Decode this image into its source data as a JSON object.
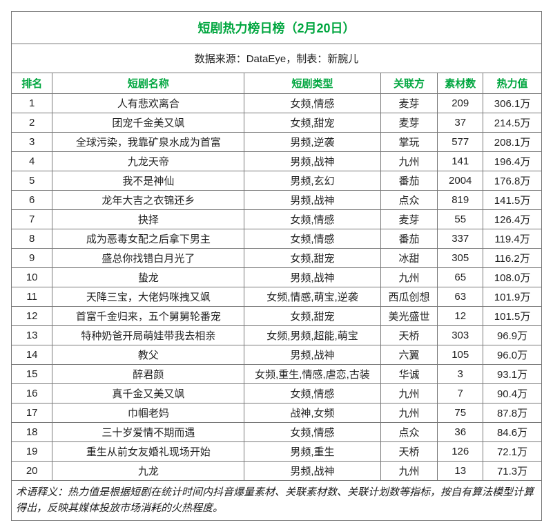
{
  "title": "短剧热力榜日榜（2月20日）",
  "source": "数据来源：DataEye，制表：新腕儿",
  "columns": [
    "排名",
    "短剧名称",
    "短剧类型",
    "关联方",
    "素材数",
    "热力值"
  ],
  "rows": [
    [
      "1",
      "人有悲欢离合",
      "女频,情感",
      "麦芽",
      "209",
      "306.1万"
    ],
    [
      "2",
      "团宠千金美又飒",
      "女频,甜宠",
      "麦芽",
      "37",
      "214.5万"
    ],
    [
      "3",
      "全球污染，我靠矿泉水成为首富",
      "男频,逆袭",
      "掌玩",
      "577",
      "208.1万"
    ],
    [
      "4",
      "九龙天帝",
      "男频,战神",
      "九州",
      "141",
      "196.4万"
    ],
    [
      "5",
      "我不是神仙",
      "男频,玄幻",
      "番茄",
      "2004",
      "176.8万"
    ],
    [
      "6",
      "龙年大吉之衣锦还乡",
      "男频,战神",
      "点众",
      "819",
      "141.5万"
    ],
    [
      "7",
      "抉择",
      "女频,情感",
      "麦芽",
      "55",
      "126.4万"
    ],
    [
      "8",
      "成为恶毒女配之后拿下男主",
      "女频,情感",
      "番茄",
      "337",
      "119.4万"
    ],
    [
      "9",
      "盛总你找错白月光了",
      "女频,甜宠",
      "冰甜",
      "305",
      "116.2万"
    ],
    [
      "10",
      "蛰龙",
      "男频,战神",
      "九州",
      "65",
      "108.0万"
    ],
    [
      "11",
      "天降三宝，大佬妈咪拽又飒",
      "女频,情感,萌宝,逆袭",
      "西瓜创想",
      "63",
      "101.9万"
    ],
    [
      "12",
      "首富千金归来，五个舅舅轮番宠",
      "女频,甜宠",
      "美光盛世",
      "12",
      "101.5万"
    ],
    [
      "13",
      "特种奶爸开局萌娃带我去相亲",
      "女频,男频,超能,萌宝",
      "天桥",
      "303",
      "96.9万"
    ],
    [
      "14",
      "教父",
      "男频,战神",
      "六翼",
      "105",
      "96.0万"
    ],
    [
      "15",
      "醉君颜",
      "女频,重生,情感,虐恋,古装",
      "华诚",
      "3",
      "93.1万"
    ],
    [
      "16",
      "真千金又美又飒",
      "女频,情感",
      "九州",
      "7",
      "90.4万"
    ],
    [
      "17",
      "巾帼老妈",
      "战神,女频",
      "九州",
      "75",
      "87.8万"
    ],
    [
      "18",
      "三十岁爱情不期而遇",
      "女频,情感",
      "点众",
      "36",
      "84.6万"
    ],
    [
      "19",
      "重生从前女友婚礼现场开始",
      "男频,重生",
      "天桥",
      "126",
      "72.1万"
    ],
    [
      "20",
      "九龙",
      "男频,战神",
      "九州",
      "13",
      "71.3万"
    ]
  ],
  "footer": "术语释义：热力值是根据短剧在统计时间内抖音爆量素材、关联素材数、关联计划数等指标，按自有算法模型计算得出，反映其媒体投放市场消耗的火热程度。",
  "colors": {
    "accent": "#00a63f",
    "border": "#777777",
    "text": "#222222",
    "background": "#ffffff"
  }
}
